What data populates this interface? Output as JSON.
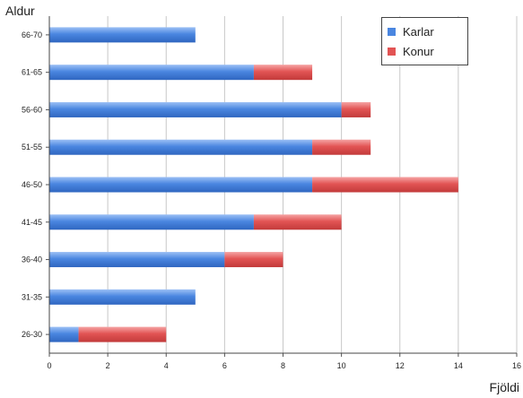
{
  "chart_data": {
    "type": "bar",
    "orientation": "horizontal",
    "stacked": true,
    "categories": [
      "26-30",
      "31-35",
      "36-40",
      "41-45",
      "46-50",
      "51-55",
      "56-60",
      "61-65",
      "66-70"
    ],
    "series": [
      {
        "name": "Karlar",
        "values": [
          1,
          5,
          6,
          7,
          9,
          9,
          10,
          7,
          5
        ],
        "color": "#4a86e0"
      },
      {
        "name": "Konur",
        "values": [
          3,
          0,
          2,
          3,
          5,
          2,
          1,
          2,
          0
        ],
        "color": "#e25454"
      }
    ],
    "xlabel": "Fjöldi",
    "ylabel": "Aldur",
    "xlim": [
      0,
      16
    ],
    "xticks": [
      0,
      2,
      4,
      6,
      8,
      10,
      12,
      14,
      16
    ],
    "grid": "vertical",
    "legend": "top-right"
  }
}
